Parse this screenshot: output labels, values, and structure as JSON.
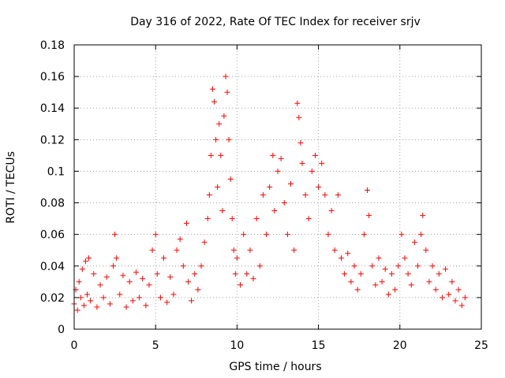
{
  "chart_data": {
    "type": "scatter",
    "title": "Day 316 of 2022, Rate Of TEC Index for receiver srjv",
    "xlabel": "GPS time / hours",
    "ylabel": "ROTI / TECUs",
    "xlim": [
      0,
      25
    ],
    "ylim": [
      0,
      0.18
    ],
    "x_ticks": [
      0,
      5,
      10,
      15,
      20,
      25
    ],
    "y_ticks": [
      0,
      0.02,
      0.04,
      0.06,
      0.08,
      0.1,
      0.12,
      0.14,
      0.16,
      0.18
    ],
    "x_tick_labels": [
      "0",
      "5",
      "10",
      "15",
      "20",
      "25"
    ],
    "y_tick_labels": [
      "0",
      "0.02",
      "0.04",
      "0.06",
      "0.08",
      "0.1",
      "0.12",
      "0.14",
      "0.16",
      "0.18"
    ],
    "grid": true,
    "marker": "+",
    "color": "#ff0000",
    "series": [
      {
        "points": [
          [
            0.0,
            0.016
          ],
          [
            0.1,
            0.025
          ],
          [
            0.2,
            0.012
          ],
          [
            0.3,
            0.03
          ],
          [
            0.4,
            0.02
          ],
          [
            0.5,
            0.038
          ],
          [
            0.6,
            0.015
          ],
          [
            0.7,
            0.043
          ],
          [
            0.8,
            0.022
          ],
          [
            0.9,
            0.045
          ],
          [
            1.0,
            0.018
          ],
          [
            1.2,
            0.035
          ],
          [
            1.4,
            0.014
          ],
          [
            1.6,
            0.028
          ],
          [
            1.8,
            0.02
          ],
          [
            2.0,
            0.033
          ],
          [
            2.2,
            0.016
          ],
          [
            2.4,
            0.04
          ],
          [
            2.5,
            0.06
          ],
          [
            2.6,
            0.045
          ],
          [
            2.8,
            0.022
          ],
          [
            3.0,
            0.034
          ],
          [
            3.2,
            0.014
          ],
          [
            3.4,
            0.03
          ],
          [
            3.6,
            0.018
          ],
          [
            3.8,
            0.036
          ],
          [
            4.0,
            0.02
          ],
          [
            4.2,
            0.032
          ],
          [
            4.4,
            0.015
          ],
          [
            4.6,
            0.028
          ],
          [
            4.8,
            0.05
          ],
          [
            5.0,
            0.06
          ],
          [
            5.1,
            0.035
          ],
          [
            5.3,
            0.02
          ],
          [
            5.5,
            0.045
          ],
          [
            5.7,
            0.017
          ],
          [
            5.9,
            0.033
          ],
          [
            6.1,
            0.022
          ],
          [
            6.3,
            0.05
          ],
          [
            6.5,
            0.057
          ],
          [
            6.7,
            0.04
          ],
          [
            6.9,
            0.067
          ],
          [
            7.0,
            0.03
          ],
          [
            7.2,
            0.018
          ],
          [
            7.4,
            0.035
          ],
          [
            7.6,
            0.025
          ],
          [
            7.8,
            0.04
          ],
          [
            8.0,
            0.055
          ],
          [
            8.2,
            0.07
          ],
          [
            8.3,
            0.085
          ],
          [
            8.4,
            0.11
          ],
          [
            8.5,
            0.152
          ],
          [
            8.6,
            0.144
          ],
          [
            8.7,
            0.12
          ],
          [
            8.8,
            0.09
          ],
          [
            8.9,
            0.13
          ],
          [
            9.0,
            0.11
          ],
          [
            9.1,
            0.075
          ],
          [
            9.2,
            0.135
          ],
          [
            9.3,
            0.16
          ],
          [
            9.4,
            0.15
          ],
          [
            9.5,
            0.12
          ],
          [
            9.6,
            0.095
          ],
          [
            9.7,
            0.07
          ],
          [
            9.8,
            0.05
          ],
          [
            9.9,
            0.035
          ],
          [
            10.0,
            0.045
          ],
          [
            10.2,
            0.028
          ],
          [
            10.4,
            0.06
          ],
          [
            10.6,
            0.035
          ],
          [
            10.8,
            0.05
          ],
          [
            11.0,
            0.032
          ],
          [
            11.2,
            0.07
          ],
          [
            11.4,
            0.04
          ],
          [
            11.6,
            0.085
          ],
          [
            11.8,
            0.06
          ],
          [
            12.0,
            0.09
          ],
          [
            12.2,
            0.11
          ],
          [
            12.3,
            0.075
          ],
          [
            12.5,
            0.1
          ],
          [
            12.7,
            0.108
          ],
          [
            12.9,
            0.08
          ],
          [
            13.1,
            0.06
          ],
          [
            13.3,
            0.092
          ],
          [
            13.5,
            0.05
          ],
          [
            13.7,
            0.143
          ],
          [
            13.8,
            0.134
          ],
          [
            13.9,
            0.118
          ],
          [
            14.0,
            0.105
          ],
          [
            14.2,
            0.085
          ],
          [
            14.4,
            0.07
          ],
          [
            14.6,
            0.1
          ],
          [
            14.8,
            0.11
          ],
          [
            15.0,
            0.09
          ],
          [
            15.2,
            0.105
          ],
          [
            15.4,
            0.085
          ],
          [
            15.6,
            0.06
          ],
          [
            15.8,
            0.075
          ],
          [
            16.0,
            0.05
          ],
          [
            16.2,
            0.085
          ],
          [
            16.4,
            0.045
          ],
          [
            16.6,
            0.035
          ],
          [
            16.8,
            0.048
          ],
          [
            17.0,
            0.03
          ],
          [
            17.2,
            0.04
          ],
          [
            17.4,
            0.025
          ],
          [
            17.6,
            0.035
          ],
          [
            17.8,
            0.06
          ],
          [
            18.0,
            0.088
          ],
          [
            18.1,
            0.072
          ],
          [
            18.3,
            0.04
          ],
          [
            18.5,
            0.028
          ],
          [
            18.7,
            0.045
          ],
          [
            18.9,
            0.03
          ],
          [
            19.1,
            0.038
          ],
          [
            19.3,
            0.022
          ],
          [
            19.5,
            0.035
          ],
          [
            19.7,
            0.025
          ],
          [
            19.9,
            0.04
          ],
          [
            20.1,
            0.06
          ],
          [
            20.3,
            0.045
          ],
          [
            20.5,
            0.035
          ],
          [
            20.7,
            0.028
          ],
          [
            20.9,
            0.055
          ],
          [
            21.1,
            0.04
          ],
          [
            21.3,
            0.06
          ],
          [
            21.4,
            0.072
          ],
          [
            21.6,
            0.05
          ],
          [
            21.8,
            0.03
          ],
          [
            22.0,
            0.04
          ],
          [
            22.2,
            0.025
          ],
          [
            22.4,
            0.035
          ],
          [
            22.6,
            0.02
          ],
          [
            22.8,
            0.038
          ],
          [
            23.0,
            0.022
          ],
          [
            23.2,
            0.03
          ],
          [
            23.4,
            0.018
          ],
          [
            23.6,
            0.025
          ],
          [
            23.8,
            0.015
          ],
          [
            24.0,
            0.02
          ]
        ]
      }
    ]
  }
}
